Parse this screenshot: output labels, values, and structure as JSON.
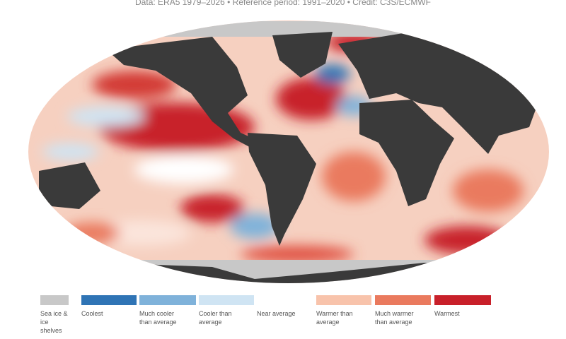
{
  "header": {
    "credit": "Data: ERA5 1979–2026 • Reference period: 1991–2020 • Credit: C3S/ECMWF"
  },
  "legend": {
    "items": [
      {
        "label": "Sea ice & ice shelves",
        "color": "#c8c8c8"
      },
      {
        "label": "Coolest",
        "color": "#2f74b5"
      },
      {
        "label": "Much cooler than average",
        "color": "#7fb2da"
      },
      {
        "label": "Cooler than average",
        "color": "#cfe4f3"
      },
      {
        "label": "Near average",
        "color": "#ffffff"
      },
      {
        "label": "Warmer than average",
        "color": "#f8c3ab"
      },
      {
        "label": "Much warmer than average",
        "color": "#ea7a5e"
      },
      {
        "label": "Warmest",
        "color": "#c8202a"
      }
    ]
  }
}
